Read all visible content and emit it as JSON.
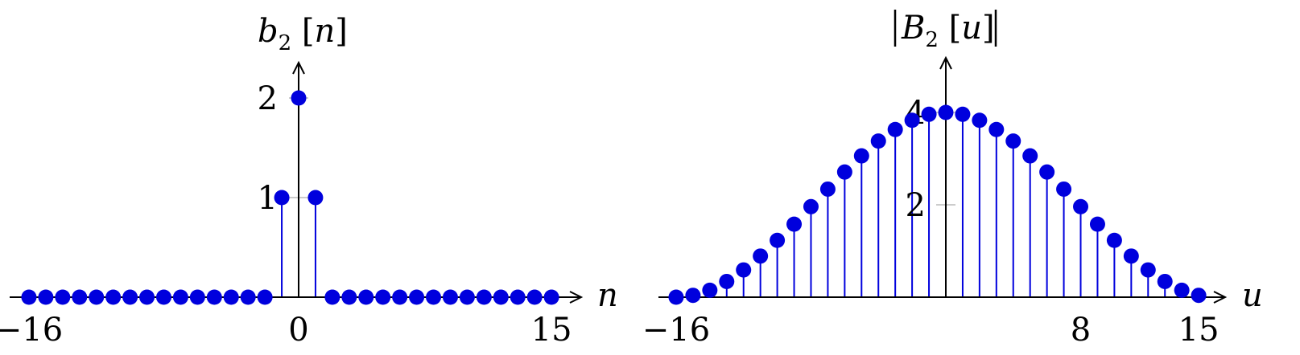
{
  "chart_data": [
    {
      "type": "stem",
      "xlabel": "n",
      "ylabel": {
        "base": "b",
        "sub": "2",
        "arg": "n"
      },
      "xlim": [
        -17,
        16
      ],
      "ylim": [
        0,
        2
      ],
      "x_ticks": [
        "−16",
        "0",
        "15"
      ],
      "y_ticks": [
        "1",
        "2"
      ],
      "marker_color": "#0000dd",
      "series": [
        {
          "x": [
            -16,
            -15,
            -14,
            -13,
            -12,
            -11,
            -10,
            -9,
            -8,
            -7,
            -6,
            -5,
            -4,
            -3,
            -2,
            -1,
            0,
            1,
            2,
            3,
            4,
            5,
            6,
            7,
            8,
            9,
            10,
            11,
            12,
            13,
            14,
            15
          ],
          "values": [
            0,
            0,
            0,
            0,
            0,
            0,
            0,
            0,
            0,
            0,
            0,
            0,
            0,
            0,
            0,
            1,
            2,
            1,
            0,
            0,
            0,
            0,
            0,
            0,
            0,
            0,
            0,
            0,
            0,
            0,
            0,
            0
          ]
        }
      ]
    },
    {
      "type": "stem",
      "xlabel": "u",
      "ylabel": {
        "base": "B",
        "sub": "2",
        "arg": "u",
        "abs": true
      },
      "xlim": [
        -16,
        16
      ],
      "ylim": [
        0,
        4
      ],
      "x_ticks": [
        "−16",
        "8",
        "15"
      ],
      "y_ticks": [
        "2",
        "4"
      ],
      "marker_color": "#0000dd",
      "series": [
        {
          "x": [
            -16,
            -15,
            -14,
            -13,
            -12,
            -11,
            -10,
            -9,
            -8,
            -7,
            -6,
            -5,
            -4,
            -3,
            -2,
            -1,
            0,
            1,
            2,
            3,
            4,
            5,
            6,
            7,
            8,
            9,
            10,
            11,
            12,
            13,
            14,
            15
          ],
          "values": [
            0.0,
            0.04,
            0.15,
            0.34,
            0.59,
            0.89,
            1.23,
            1.58,
            1.96,
            2.34,
            2.71,
            3.06,
            3.38,
            3.63,
            3.83,
            3.96,
            4.0,
            3.96,
            3.83,
            3.63,
            3.38,
            3.06,
            2.71,
            2.34,
            1.96,
            1.58,
            1.23,
            0.89,
            0.59,
            0.34,
            0.15,
            0.04
          ]
        }
      ]
    }
  ]
}
